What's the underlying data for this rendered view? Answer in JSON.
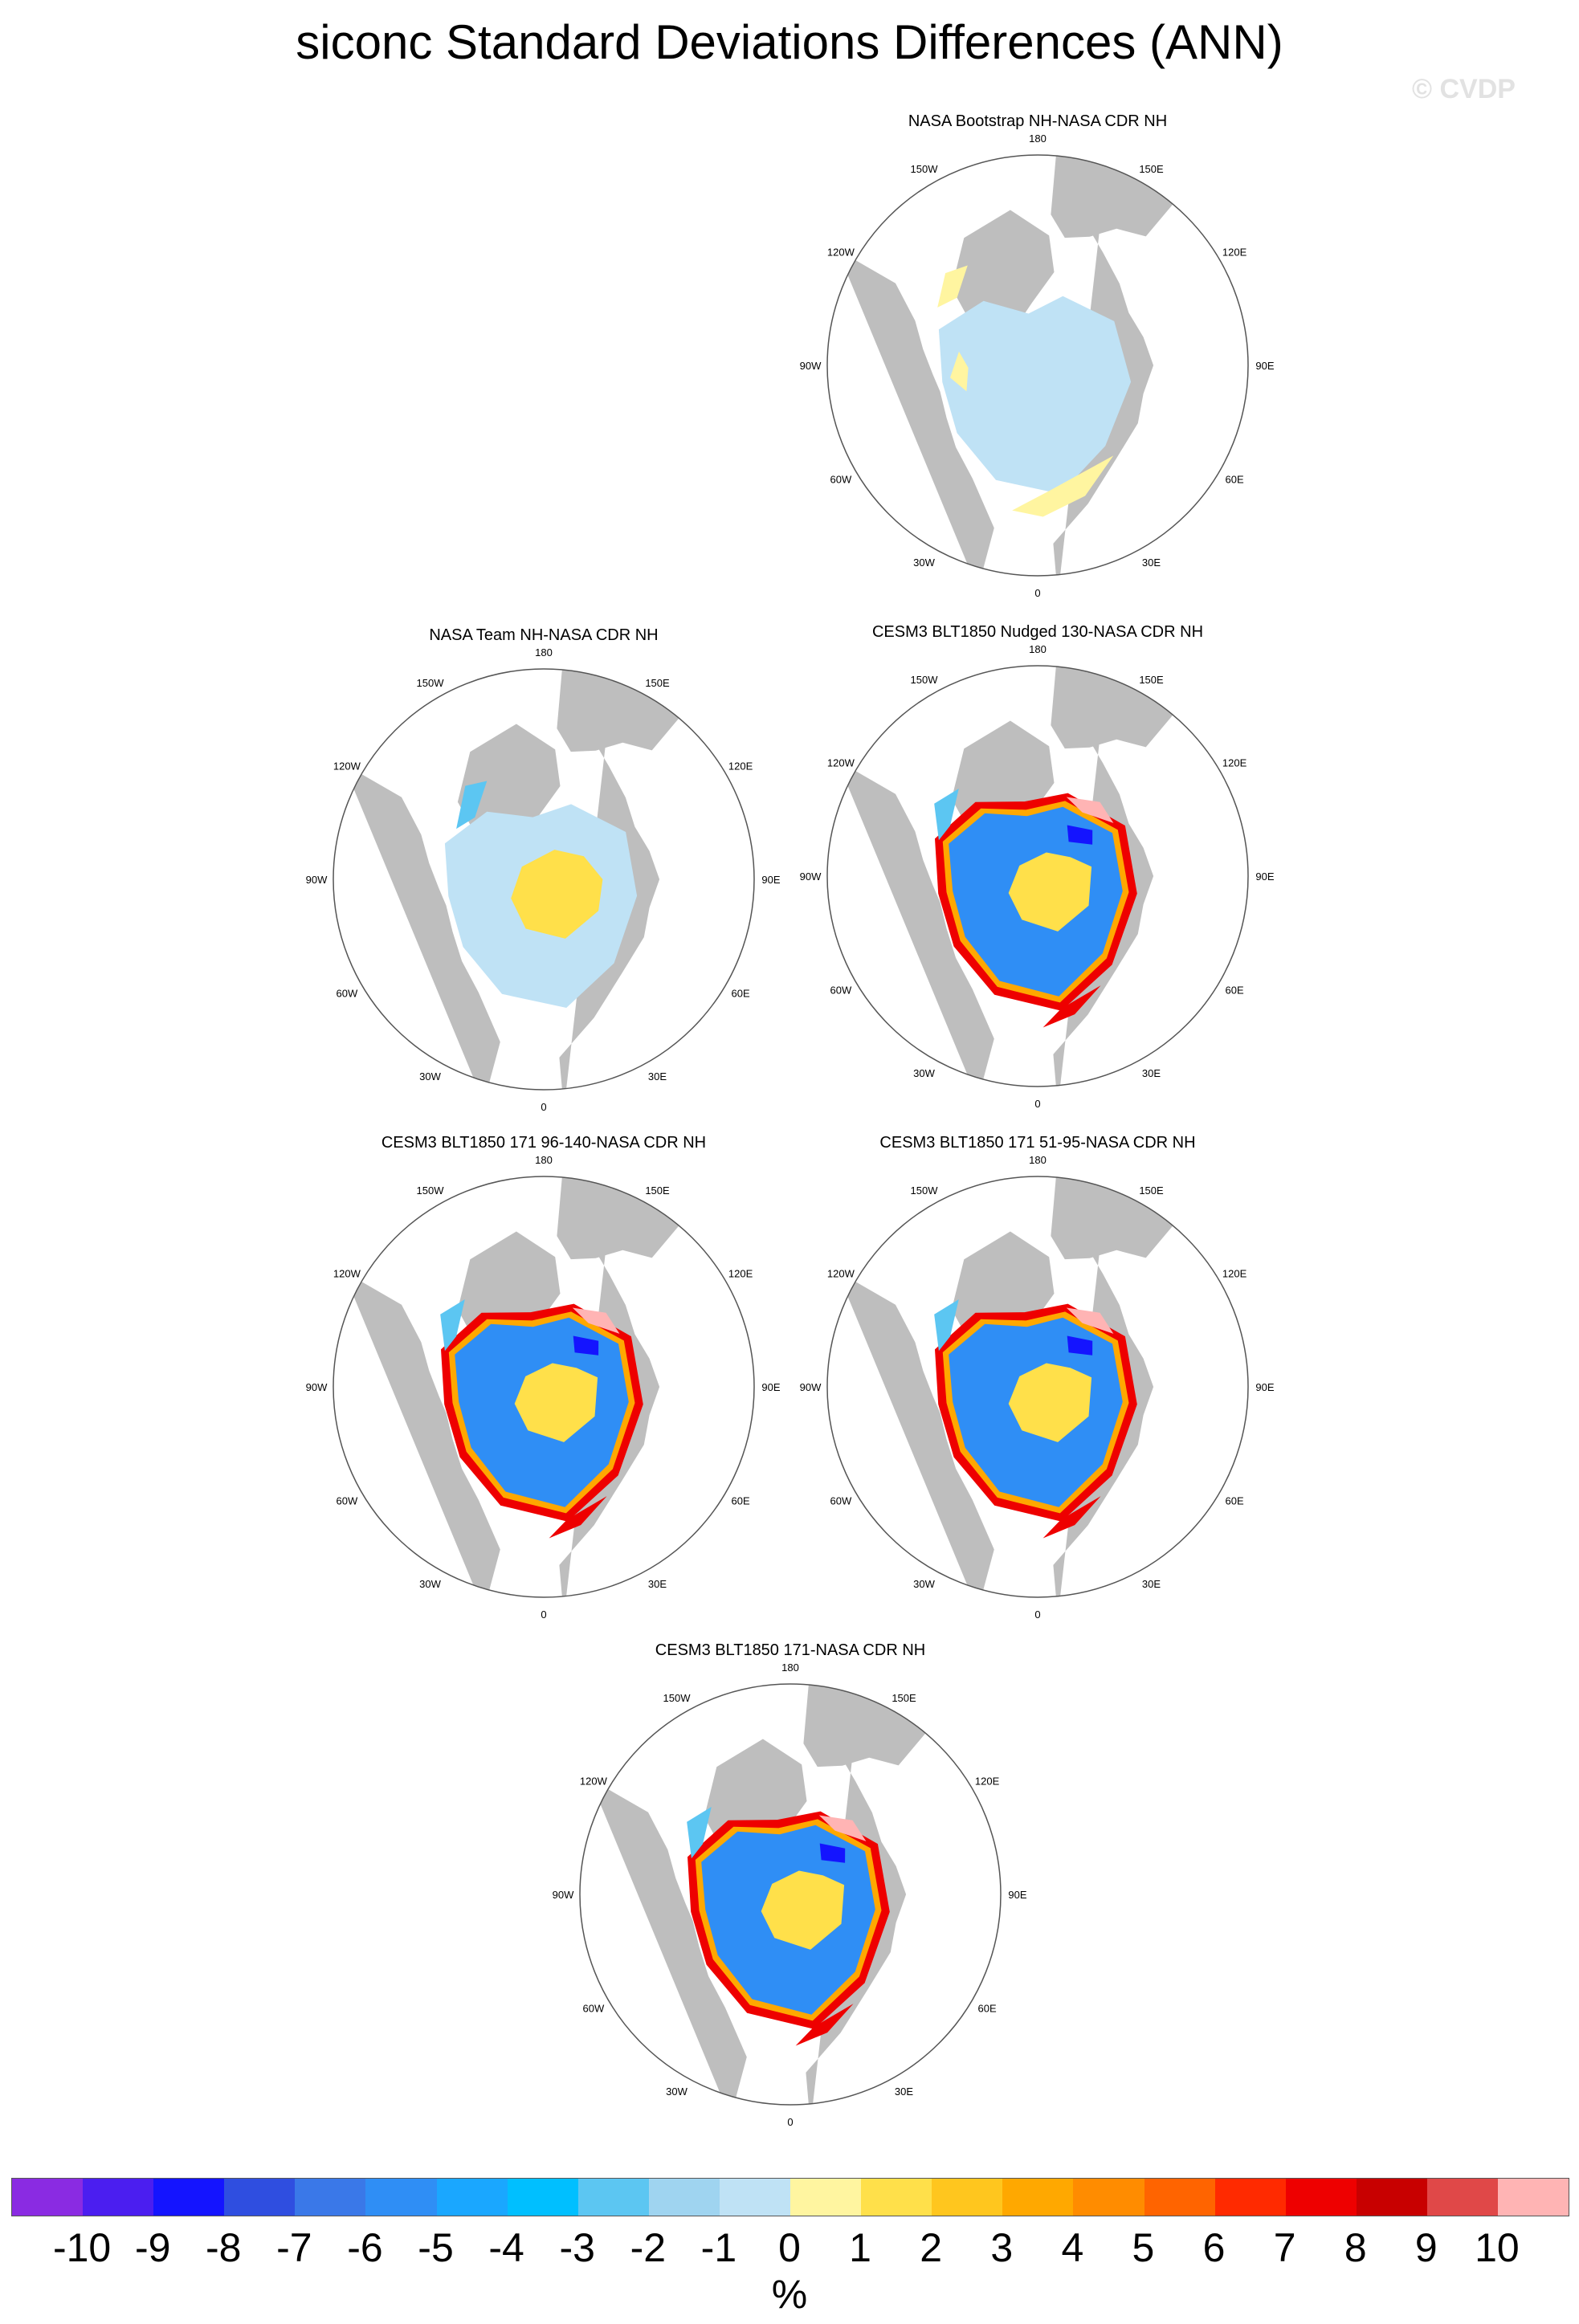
{
  "title": "siconc Standard Deviations Differences (ANN)",
  "watermark": "© CVDP",
  "panels": [
    {
      "id": "p1",
      "title": "NASA Bootstrap NH-NASA CDR NH",
      "pattern": "small-diff"
    },
    {
      "id": "p2",
      "title": "NASA Team NH-NASA CDR NH",
      "pattern": "team"
    },
    {
      "id": "p3",
      "title": "CESM3 BLT1850 Nudged 130-NASA CDR NH",
      "pattern": "model"
    },
    {
      "id": "p4",
      "title": "CESM3 BLT1850 171 96-140-NASA CDR NH",
      "pattern": "model"
    },
    {
      "id": "p5",
      "title": "CESM3 BLT1850 171 51-95-NASA CDR NH",
      "pattern": "model"
    },
    {
      "id": "p6",
      "title": "CESM3 BLT1850 171-NASA CDR NH",
      "pattern": "model"
    }
  ],
  "lon_labels": [
    "180",
    "150E",
    "120E",
    "90E",
    "60E",
    "30E",
    "0",
    "30W",
    "60W",
    "90W",
    "120W",
    "150W"
  ],
  "colorbar": {
    "colors": [
      "#8a2be2",
      "#4b1ef0",
      "#1414ff",
      "#2f4ee0",
      "#3a78e8",
      "#2f8ef5",
      "#1aa7ff",
      "#00bfff",
      "#5cc6f2",
      "#9fd4f0",
      "#bfe2f5",
      "#fff5a0",
      "#ffe04a",
      "#ffc61e",
      "#ffa800",
      "#ff8c00",
      "#ff6400",
      "#ff2a00",
      "#ee0000",
      "#c80000",
      "#e04848",
      "#ffb4b4"
    ],
    "labels": [
      "-10",
      "-9",
      "-8",
      "-7",
      "-6",
      "-5",
      "-4",
      "-3",
      "-2",
      "-1",
      "0",
      "1",
      "2",
      "3",
      "4",
      "5",
      "6",
      "7",
      "8",
      "9",
      "10"
    ],
    "units": "%"
  },
  "map_colors": {
    "land": "#bebebe",
    "ocean": "#ffffff",
    "outline": "#555555",
    "light_blue": "#bfe2f5",
    "mid_blue": "#5cc6f2",
    "blue": "#2f8ef5",
    "dark_blue": "#1414ff",
    "pale_yellow": "#fff5a0",
    "yellow": "#ffe04a",
    "orange": "#ffa800",
    "red": "#ee0000",
    "pink": "#ffb4b4"
  }
}
